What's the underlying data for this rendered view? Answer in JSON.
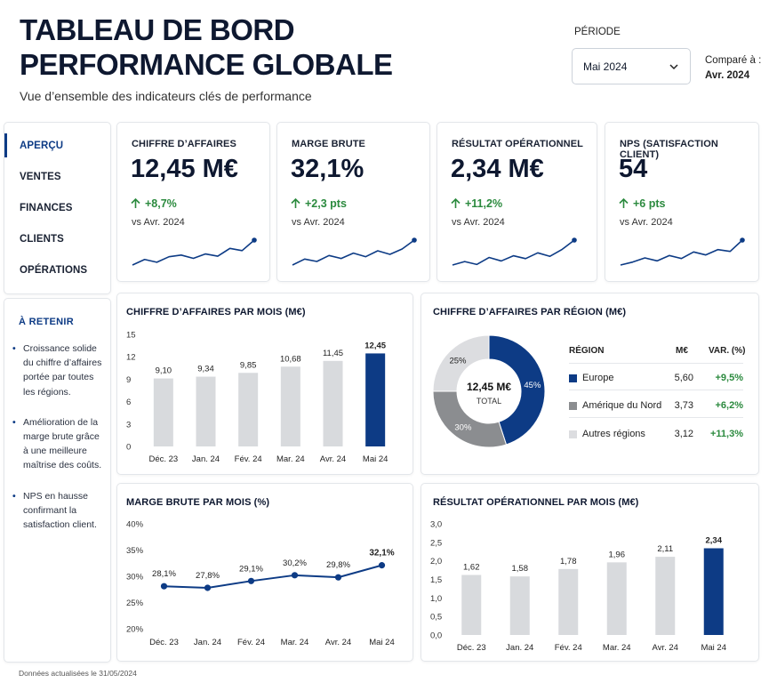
{
  "header": {
    "title_line1": "TABLEAU DE BORD",
    "title_line2": "PERFORMANCE GLOBALE",
    "subtitle": "Vue d’ensemble des indicateurs clés de performance",
    "period_label": "PÉRIODE",
    "period_value": "Mai 2024",
    "compare_label": "Comparé à :",
    "compare_value": "Avr. 2024"
  },
  "sidebar": {
    "items": [
      {
        "label": "APERÇU",
        "active": true
      },
      {
        "label": "VENTES",
        "active": false
      },
      {
        "label": "FINANCES",
        "active": false
      },
      {
        "label": "CLIENTS",
        "active": false
      },
      {
        "label": "OPÉRATIONS",
        "active": false
      }
    ],
    "retain_title": "À RETENIR",
    "retain_items": [
      "Croissance solide du chiffre d’affaires portée par toutes les régions.",
      "Amélioration de la marge brute grâce à une meilleure maîtrise des coûts.",
      "NPS en hausse confirmant la satisfaction client."
    ]
  },
  "kpis": [
    {
      "label": "CHIFFRE D’AFFAIRES",
      "value": "12,45 M€",
      "delta": "+8,7%",
      "vs": "vs Avr. 2024",
      "spark": [
        1,
        2,
        1.5,
        2.5,
        2.8,
        2.2,
        3,
        2.6,
        4,
        3.6,
        5.5
      ]
    },
    {
      "label": "MARGE BRUTE",
      "value": "32,1%",
      "delta": "+2,3 pts",
      "vs": "vs Avr. 2024",
      "spark": [
        1,
        2,
        1.6,
        2.6,
        2.1,
        3,
        2.4,
        3.4,
        2.8,
        3.7,
        5.2
      ]
    },
    {
      "label": "RÉSULTAT OPÉRATIONNEL",
      "value": "2,34 M€",
      "delta": "+11,2%",
      "vs": "vs Avr. 2024",
      "spark": [
        1.5,
        2.1,
        1.6,
        2.8,
        2.2,
        3.1,
        2.6,
        3.6,
        3.0,
        4.2,
        5.8
      ]
    },
    {
      "label": "NPS (SATISFACTION CLIENT)",
      "value": "54",
      "delta": "+6 pts",
      "vs": "vs Avr. 2024",
      "spark": [
        1,
        1.5,
        2.2,
        1.7,
        2.6,
        2.1,
        3.2,
        2.7,
        3.6,
        3.3,
        5.2
      ]
    }
  ],
  "colors": {
    "navy": "#0d3b85",
    "light_bar": "#d8dadd",
    "grey": "#8b8d90",
    "light_grey": "#dcdde0",
    "positive": "#2b8a3e"
  },
  "chart_data": [
    {
      "type": "bar",
      "title": "CHIFFRE D’AFFAIRES PAR MOIS (M€)",
      "categories": [
        "Déc. 23",
        "Jan. 24",
        "Fév. 24",
        "Mar. 24",
        "Avr. 24",
        "Mai 24"
      ],
      "values": [
        9.1,
        9.34,
        9.85,
        10.68,
        11.45,
        12.45
      ],
      "value_labels": [
        "9,10",
        "9,34",
        "9,85",
        "10,68",
        "11,45",
        "12,45"
      ],
      "y_ticks": [
        "0",
        "3",
        "6",
        "9",
        "12",
        "15"
      ],
      "ylim": [
        0,
        15
      ],
      "highlight_last": true
    },
    {
      "type": "pie",
      "title": "CHIFFRE D’AFFAIRES PAR RÉGION (M€)",
      "center_value": "12,45 M€",
      "center_label": "TOTAL",
      "columns": [
        "RÉGION",
        "M€",
        "VAR. (%)"
      ],
      "slices": [
        {
          "name": "Europe",
          "share": 45,
          "share_label": "45%",
          "value": "5,60",
          "var": "+9,5%",
          "color": "#0d3b85"
        },
        {
          "name": "Amérique du Nord",
          "share": 30,
          "share_label": "30%",
          "value": "3,73",
          "var": "+6,2%",
          "color": "#8b8d90"
        },
        {
          "name": "Autres régions",
          "share": 25,
          "share_label": "25%",
          "value": "3,12",
          "var": "+11,3%",
          "color": "#dcdde0"
        }
      ]
    },
    {
      "type": "line",
      "title": "MARGE BRUTE PAR MOIS (%)",
      "categories": [
        "Déc. 23",
        "Jan. 24",
        "Fév. 24",
        "Mar. 24",
        "Avr. 24",
        "Mai 24"
      ],
      "values": [
        28.1,
        27.8,
        29.1,
        30.2,
        29.8,
        32.1
      ],
      "value_labels": [
        "28,1%",
        "27,8%",
        "29,1%",
        "30,2%",
        "29,8%",
        "32,1%"
      ],
      "y_ticks": [
        "20%",
        "25%",
        "30%",
        "35%",
        "40%"
      ],
      "ylim": [
        20,
        40
      ]
    },
    {
      "type": "bar",
      "title": "RÉSULTAT OPÉRATIONNEL PAR MOIS (M€)",
      "categories": [
        "Déc. 23",
        "Jan. 24",
        "Fév. 24",
        "Mar. 24",
        "Avr. 24",
        "Mai 24"
      ],
      "values": [
        1.62,
        1.58,
        1.78,
        1.96,
        2.11,
        2.34
      ],
      "value_labels": [
        "1,62",
        "1,58",
        "1,78",
        "1,96",
        "2,11",
        "2,34"
      ],
      "y_ticks": [
        "0,0",
        "0,5",
        "1,0",
        "1,5",
        "2,0",
        "2,5",
        "3,0"
      ],
      "ylim": [
        0,
        3
      ],
      "highlight_last": true
    }
  ],
  "footer": "Données actualisées le 31/05/2024"
}
